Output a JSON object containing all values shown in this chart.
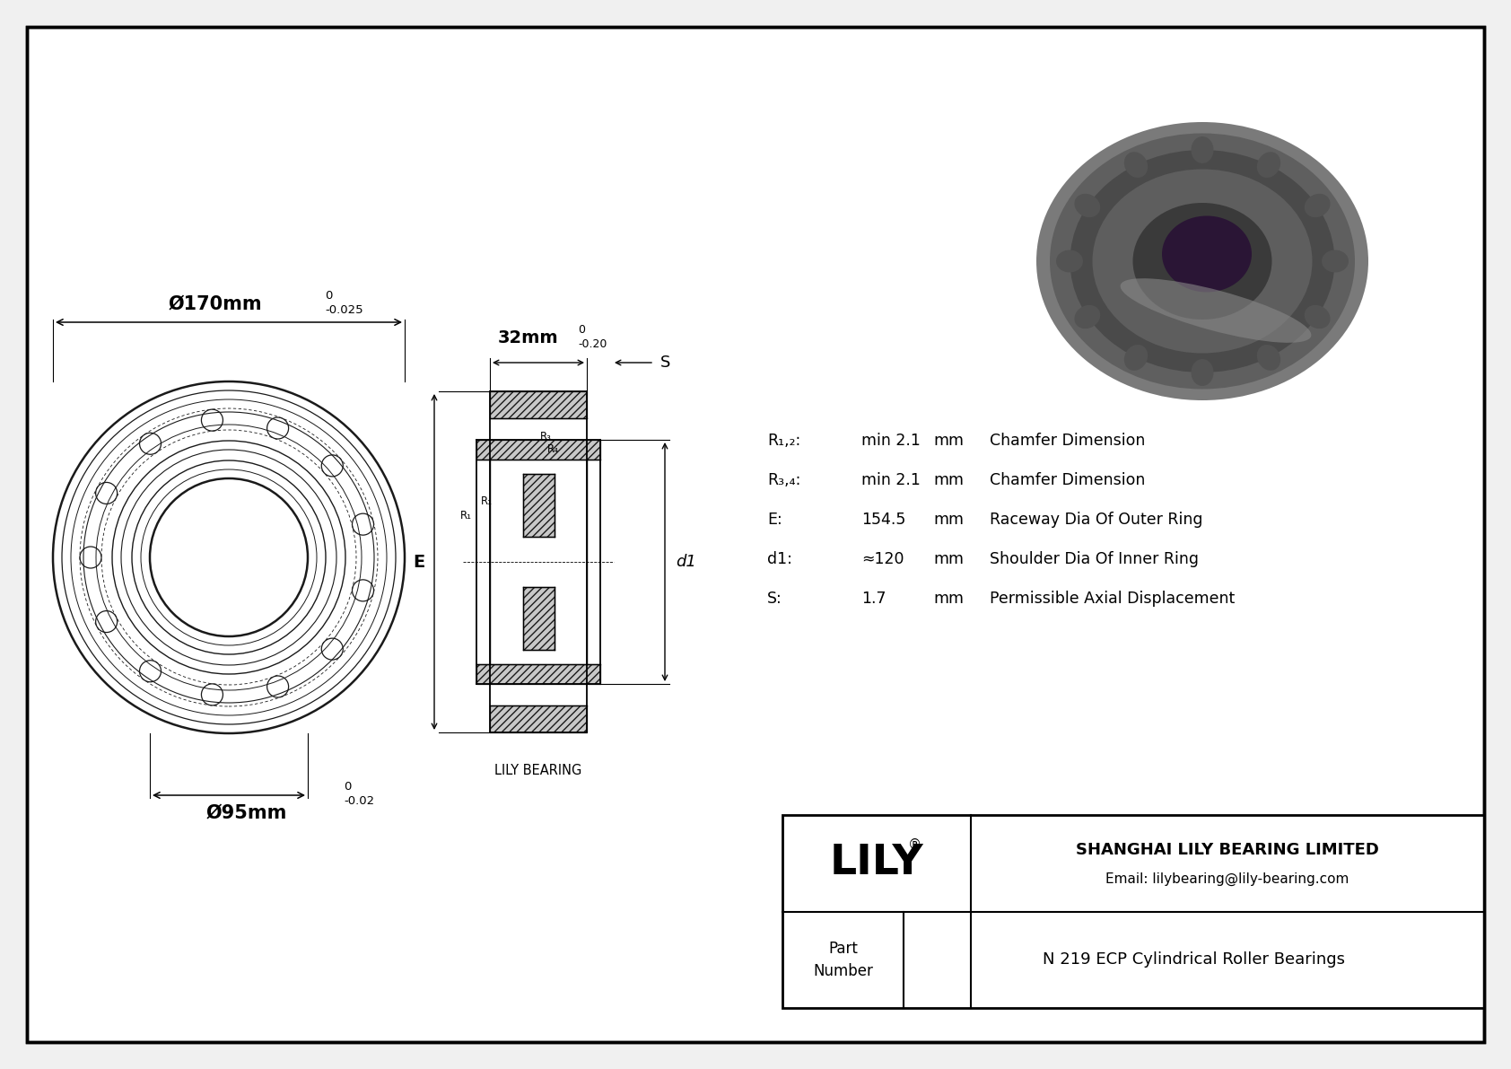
{
  "bg_color": "#f0f0f0",
  "outer_dia_label": "Ø170mm",
  "outer_dia_tol_upper": "0",
  "outer_dia_tol_lower": "-0.025",
  "inner_dia_label": "Ø95mm",
  "inner_dia_tol_upper": "0",
  "inner_dia_tol_lower": "-0.02",
  "width_label": "32mm",
  "width_tol_upper": "0",
  "width_tol_lower": "-0.20",
  "spec_rows": [
    [
      "R₁,₂:",
      "min 2.1",
      "mm",
      "Chamfer Dimension"
    ],
    [
      "R₃,₄:",
      "min 2.1",
      "mm",
      "Chamfer Dimension"
    ],
    [
      "E:",
      "154.5",
      "mm",
      "Raceway Dia Of Outer Ring"
    ],
    [
      "d1:",
      "≈120",
      "mm",
      "Shoulder Dia Of Inner Ring"
    ],
    [
      "S:",
      "1.7",
      "mm",
      "Permissible Axial Displacement"
    ]
  ],
  "company_name": "SHANGHAI LILY BEARING LIMITED",
  "email": "Email: lilybearing@lily-bearing.com",
  "part_number": "N 219 ECP Cylindrical Roller Bearings",
  "lily_logo": "LILY",
  "watermark_text": "LILY BEARING"
}
